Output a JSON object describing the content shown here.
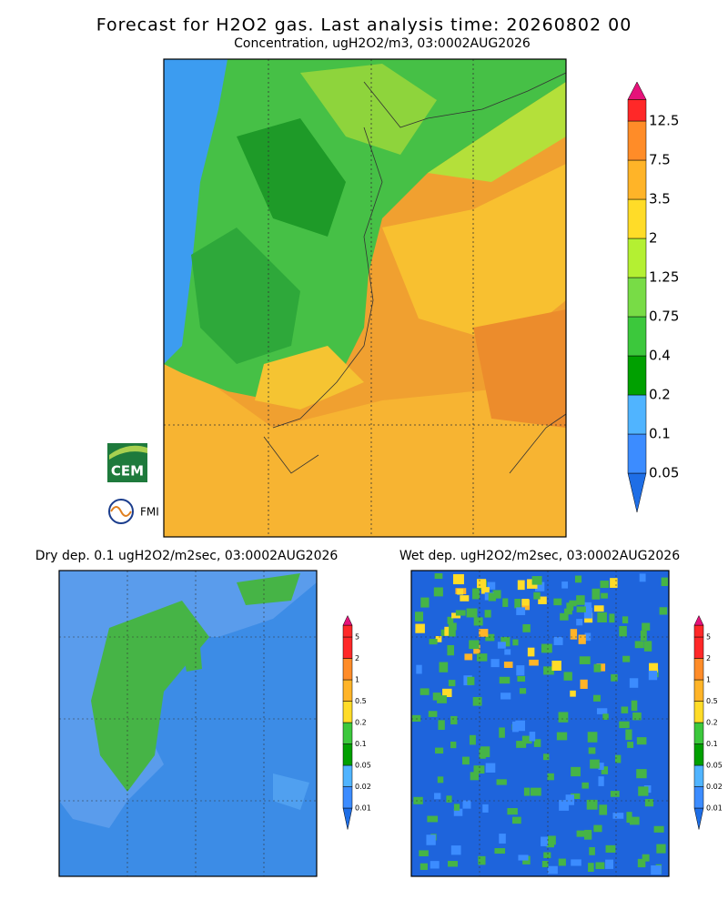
{
  "title": "Forecast for H2O2 gas. Last analysis time: 20260802 00",
  "panels": [
    {
      "subtitle": "Concentration, ugH2O2/m3, 03:0002AUG2026",
      "legend": [
        "0.05",
        "0.1",
        "0.2",
        "0.4",
        "0.75",
        "1.25",
        "2",
        "3.5",
        "7.5",
        "12.5"
      ]
    },
    {
      "subtitle": "Dry dep. 0.1 ugH2O2/m2sec, 03:0002AUG2026",
      "legend": [
        "0.01",
        "0.02",
        "0.05",
        "0.1",
        "0.2",
        "0.5",
        "1",
        "2",
        "5"
      ]
    },
    {
      "subtitle": "Wet dep. ugH2O2/m2sec, 03:0002AUG2026",
      "legend": [
        "0.01",
        "0.02",
        "0.05",
        "0.1",
        "0.2",
        "0.5",
        "1",
        "2",
        "5"
      ]
    }
  ],
  "logos": [
    "CEM",
    "FMI"
  ]
}
